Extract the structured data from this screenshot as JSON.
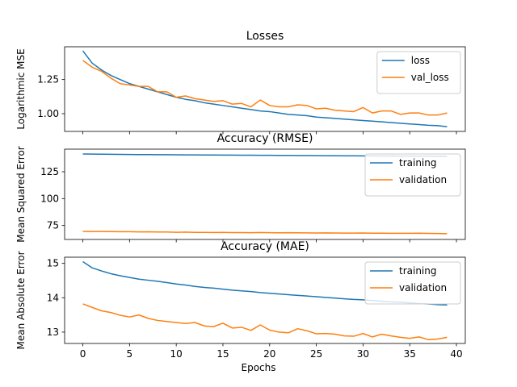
{
  "figure": {
    "xlabel": "Epochs"
  },
  "chart_data": [
    {
      "type": "line",
      "title": "Losses",
      "ylabel": "Logarithmic MSE",
      "xlim": [
        -1.95,
        40.95
      ],
      "ylim": [
        0.87,
        1.49
      ],
      "yticks": [
        1.0,
        1.25
      ],
      "yticklabels": [
        "1.00",
        "1.25"
      ],
      "legend": "top-right",
      "series": [
        {
          "name": "loss",
          "color": "#1f77b4",
          "x": [
            0,
            1,
            2,
            3,
            4,
            5,
            6,
            7,
            8,
            9,
            10,
            11,
            12,
            13,
            14,
            15,
            16,
            17,
            18,
            19,
            20,
            21,
            22,
            23,
            24,
            25,
            26,
            27,
            28,
            29,
            30,
            31,
            32,
            33,
            34,
            35,
            36,
            37,
            38,
            39
          ],
          "values": [
            1.46,
            1.37,
            1.32,
            1.28,
            1.25,
            1.22,
            1.2,
            1.18,
            1.16,
            1.14,
            1.12,
            1.105,
            1.095,
            1.08,
            1.07,
            1.06,
            1.05,
            1.04,
            1.03,
            1.02,
            1.015,
            1.005,
            0.995,
            0.99,
            0.985,
            0.975,
            0.97,
            0.965,
            0.96,
            0.955,
            0.95,
            0.945,
            0.94,
            0.935,
            0.93,
            0.925,
            0.92,
            0.915,
            0.912,
            0.905
          ]
        },
        {
          "name": "val_loss",
          "color": "#ff7f0e",
          "x": [
            0,
            1,
            2,
            3,
            4,
            5,
            6,
            7,
            8,
            9,
            10,
            11,
            12,
            13,
            14,
            15,
            16,
            17,
            18,
            19,
            20,
            21,
            22,
            23,
            24,
            25,
            26,
            27,
            28,
            29,
            30,
            31,
            32,
            33,
            34,
            35,
            36,
            37,
            38,
            39
          ],
          "values": [
            1.39,
            1.34,
            1.31,
            1.26,
            1.22,
            1.21,
            1.2,
            1.2,
            1.16,
            1.16,
            1.12,
            1.13,
            1.11,
            1.1,
            1.09,
            1.095,
            1.07,
            1.075,
            1.05,
            1.1,
            1.06,
            1.05,
            1.05,
            1.065,
            1.06,
            1.035,
            1.04,
            1.025,
            1.02,
            1.015,
            1.045,
            1.005,
            1.02,
            1.02,
            0.995,
            1.005,
            1.005,
            0.99,
            0.99,
            1.005
          ]
        }
      ]
    },
    {
      "type": "line",
      "title": "Accuracy (RMSE)",
      "ylabel": "Mean Squared Error",
      "xlim": [
        -1.95,
        40.95
      ],
      "ylim": [
        62,
        146
      ],
      "yticks": [
        75,
        100,
        125
      ],
      "yticklabels": [
        "75",
        "100",
        "125"
      ],
      "legend": "top-right",
      "series": [
        {
          "name": "training",
          "color": "#1f77b4",
          "x": [
            0,
            1,
            2,
            3,
            4,
            5,
            6,
            7,
            8,
            9,
            10,
            11,
            12,
            13,
            14,
            15,
            16,
            17,
            18,
            19,
            20,
            21,
            22,
            23,
            24,
            25,
            26,
            27,
            28,
            29,
            30,
            31,
            32,
            33,
            34,
            35,
            36,
            37,
            38,
            39
          ],
          "values": [
            141.5,
            141.4,
            141.3,
            141.2,
            141.1,
            141.0,
            140.95,
            140.9,
            140.85,
            140.8,
            140.75,
            140.7,
            140.65,
            140.6,
            140.55,
            140.5,
            140.45,
            140.4,
            140.35,
            140.3,
            140.25,
            140.2,
            140.15,
            140.1,
            140.05,
            140.0,
            139.95,
            139.9,
            139.85,
            139.8,
            139.75,
            139.7,
            139.65,
            139.6,
            139.55,
            139.5,
            139.45,
            139.4,
            139.35,
            139.3
          ]
        },
        {
          "name": "validation",
          "color": "#ff7f0e",
          "x": [
            0,
            1,
            2,
            3,
            4,
            5,
            6,
            7,
            8,
            9,
            10,
            11,
            12,
            13,
            14,
            15,
            16,
            17,
            18,
            19,
            20,
            21,
            22,
            23,
            24,
            25,
            26,
            27,
            28,
            29,
            30,
            31,
            32,
            33,
            34,
            35,
            36,
            37,
            38,
            39
          ],
          "values": [
            69.5,
            69.4,
            69.4,
            69.3,
            69.2,
            69.2,
            69.0,
            69.1,
            68.9,
            68.9,
            68.7,
            68.8,
            68.6,
            68.6,
            68.5,
            68.6,
            68.4,
            68.4,
            68.3,
            68.5,
            68.3,
            68.2,
            68.3,
            68.2,
            68.1,
            68.0,
            68.1,
            68.0,
            67.9,
            67.9,
            68.0,
            67.8,
            67.8,
            67.7,
            67.7,
            67.7,
            67.8,
            67.6,
            67.5,
            67.3
          ]
        }
      ]
    },
    {
      "type": "line",
      "title": "Accuracy (MAE)",
      "ylabel": "Mean Absolute Error",
      "xlim": [
        -1.95,
        40.95
      ],
      "ylim": [
        12.67,
        15.18
      ],
      "yticks": [
        13,
        14,
        15
      ],
      "yticklabels": [
        "13",
        "14",
        "15"
      ],
      "xticks": [
        0,
        5,
        10,
        15,
        20,
        25,
        30,
        35,
        40
      ],
      "xticklabels": [
        "0",
        "5",
        "10",
        "15",
        "20",
        "25",
        "30",
        "35",
        "40"
      ],
      "legend": "top-right",
      "series": [
        {
          "name": "training",
          "color": "#1f77b4",
          "x": [
            0,
            1,
            2,
            3,
            4,
            5,
            6,
            7,
            8,
            9,
            10,
            11,
            12,
            13,
            14,
            15,
            16,
            17,
            18,
            19,
            20,
            21,
            22,
            23,
            24,
            25,
            26,
            27,
            28,
            29,
            30,
            31,
            32,
            33,
            34,
            35,
            36,
            37,
            38,
            39
          ],
          "values": [
            15.05,
            14.87,
            14.78,
            14.7,
            14.64,
            14.59,
            14.54,
            14.51,
            14.48,
            14.44,
            14.4,
            14.37,
            14.33,
            14.3,
            14.28,
            14.25,
            14.22,
            14.2,
            14.18,
            14.15,
            14.13,
            14.11,
            14.09,
            14.07,
            14.05,
            14.03,
            14.01,
            13.99,
            13.97,
            13.95,
            13.94,
            13.92,
            13.9,
            13.88,
            13.87,
            13.85,
            13.83,
            13.82,
            13.8,
            13.79
          ]
        },
        {
          "name": "validation",
          "color": "#ff7f0e",
          "x": [
            0,
            1,
            2,
            3,
            4,
            5,
            6,
            7,
            8,
            9,
            10,
            11,
            12,
            13,
            14,
            15,
            16,
            17,
            18,
            19,
            20,
            21,
            22,
            23,
            24,
            25,
            26,
            27,
            28,
            29,
            30,
            31,
            32,
            33,
            34,
            35,
            36,
            37,
            38,
            39
          ],
          "values": [
            13.82,
            13.72,
            13.62,
            13.57,
            13.49,
            13.44,
            13.5,
            13.4,
            13.34,
            13.31,
            13.28,
            13.25,
            13.28,
            13.18,
            13.16,
            13.26,
            13.12,
            13.14,
            13.05,
            13.21,
            13.06,
            13.0,
            12.98,
            13.1,
            13.04,
            12.95,
            12.96,
            12.94,
            12.89,
            12.88,
            12.96,
            12.86,
            12.94,
            12.89,
            12.85,
            12.82,
            12.86,
            12.78,
            12.8,
            12.85
          ]
        }
      ]
    }
  ]
}
